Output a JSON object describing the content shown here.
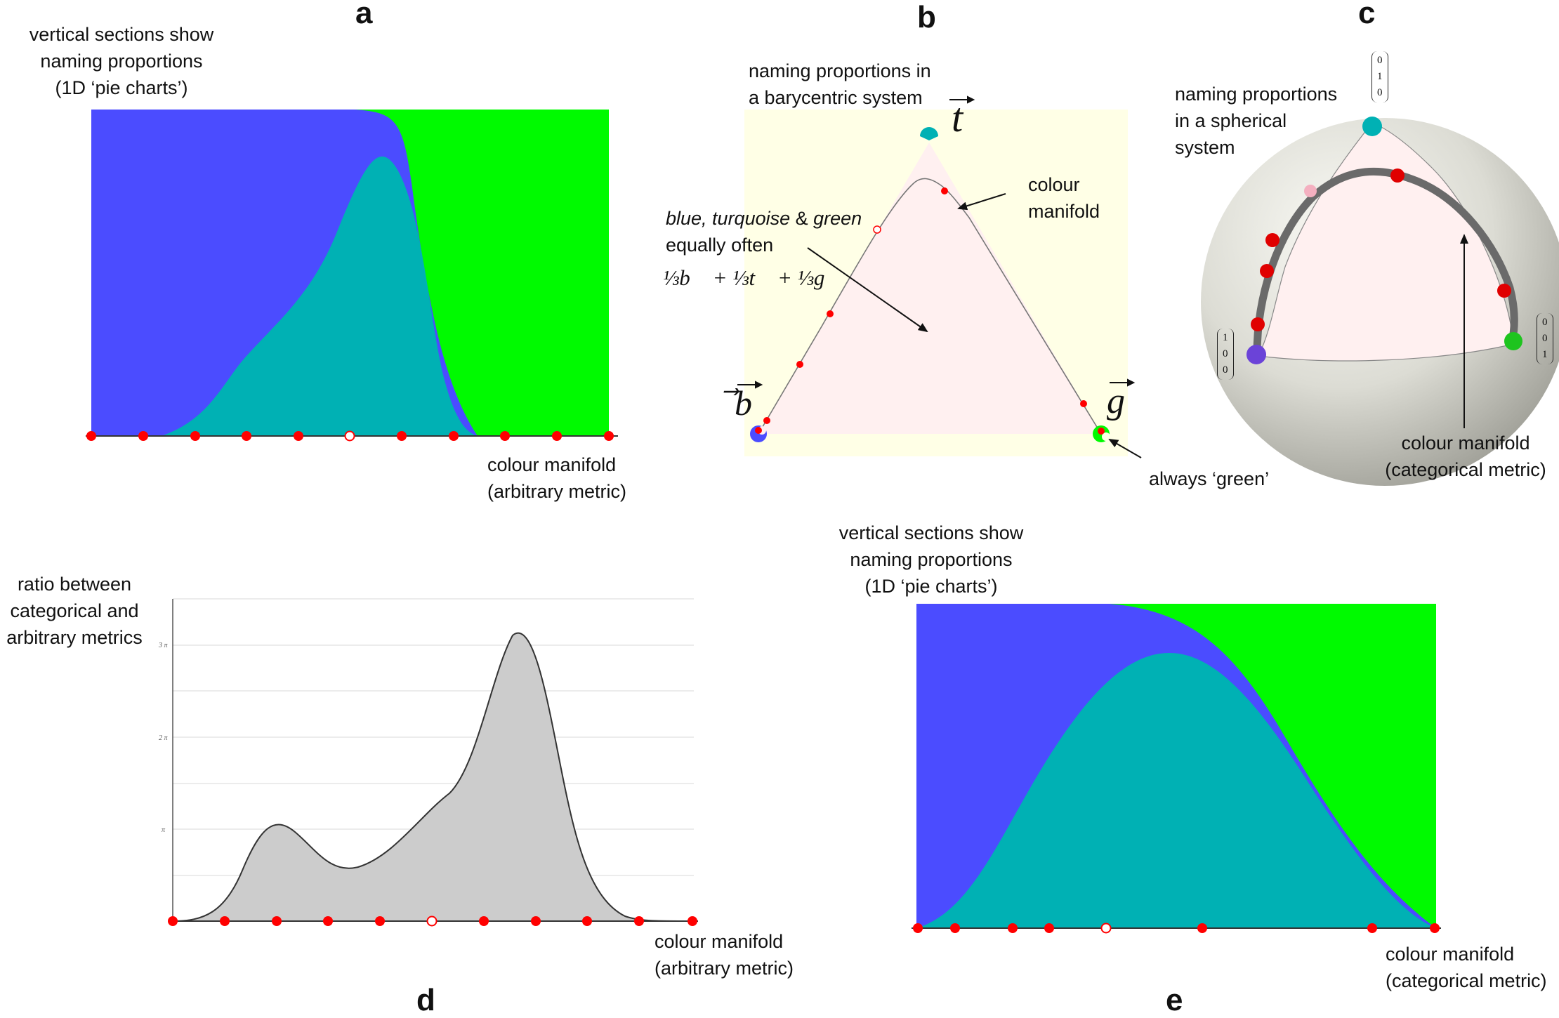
{
  "panels": {
    "a": {
      "letter": "a",
      "top_label": [
        "vertical sections show",
        "naming proportions",
        "(1D ‘pie charts’)"
      ],
      "axis_label": [
        "colour manifold",
        "(arbitrary metric)"
      ]
    },
    "b": {
      "letter": "b",
      "top_label": [
        "naming proportions in",
        "a barycentric system"
      ],
      "manifold_label": [
        "colour",
        "manifold"
      ],
      "equal_label_line1_italic": "blue, turquoise",
      "equal_label_amp": " & ",
      "equal_label_line1_italic2": "green",
      "equal_label_line2": "equally often",
      "equal_formula": "⅓b⃗ + ⅓t⃗ + ⅓g⃗",
      "vertex_b": "b",
      "vertex_t": "t",
      "vertex_g": "g",
      "always_green": "always ‘green’"
    },
    "c": {
      "letter": "c",
      "top_label": [
        "naming proportions",
        "in a spherical",
        "system"
      ],
      "vec_top": [
        "0",
        "1",
        "0"
      ],
      "vec_left": [
        "1",
        "0",
        "0"
      ],
      "vec_right": [
        "0",
        "0",
        "1"
      ],
      "axis_label": [
        "colour manifold",
        "(categorical metric)"
      ]
    },
    "d": {
      "letter": "d",
      "y_label": [
        "ratio between",
        "categorical  and",
        "arbitrary metrics"
      ],
      "ticks": [
        "3 π",
        "2 π",
        "π"
      ],
      "axis_label": [
        "colour manifold",
        "(arbitrary metric)"
      ]
    },
    "e": {
      "letter": "e",
      "top_label": [
        "vertical sections show",
        "naming proportions",
        "(1D ‘pie charts’)"
      ],
      "axis_label": [
        "colour manifold",
        "(categorical metric)"
      ]
    }
  },
  "colors": {
    "blue": "#4b4cff",
    "turquoise": "#00b1b4",
    "green": "#00fa00",
    "marker": "#ff0000",
    "ratio_fill": "#cccccc",
    "barycentric_bg": "#ffffe6",
    "triangle_fill": "#fff0f0"
  }
}
